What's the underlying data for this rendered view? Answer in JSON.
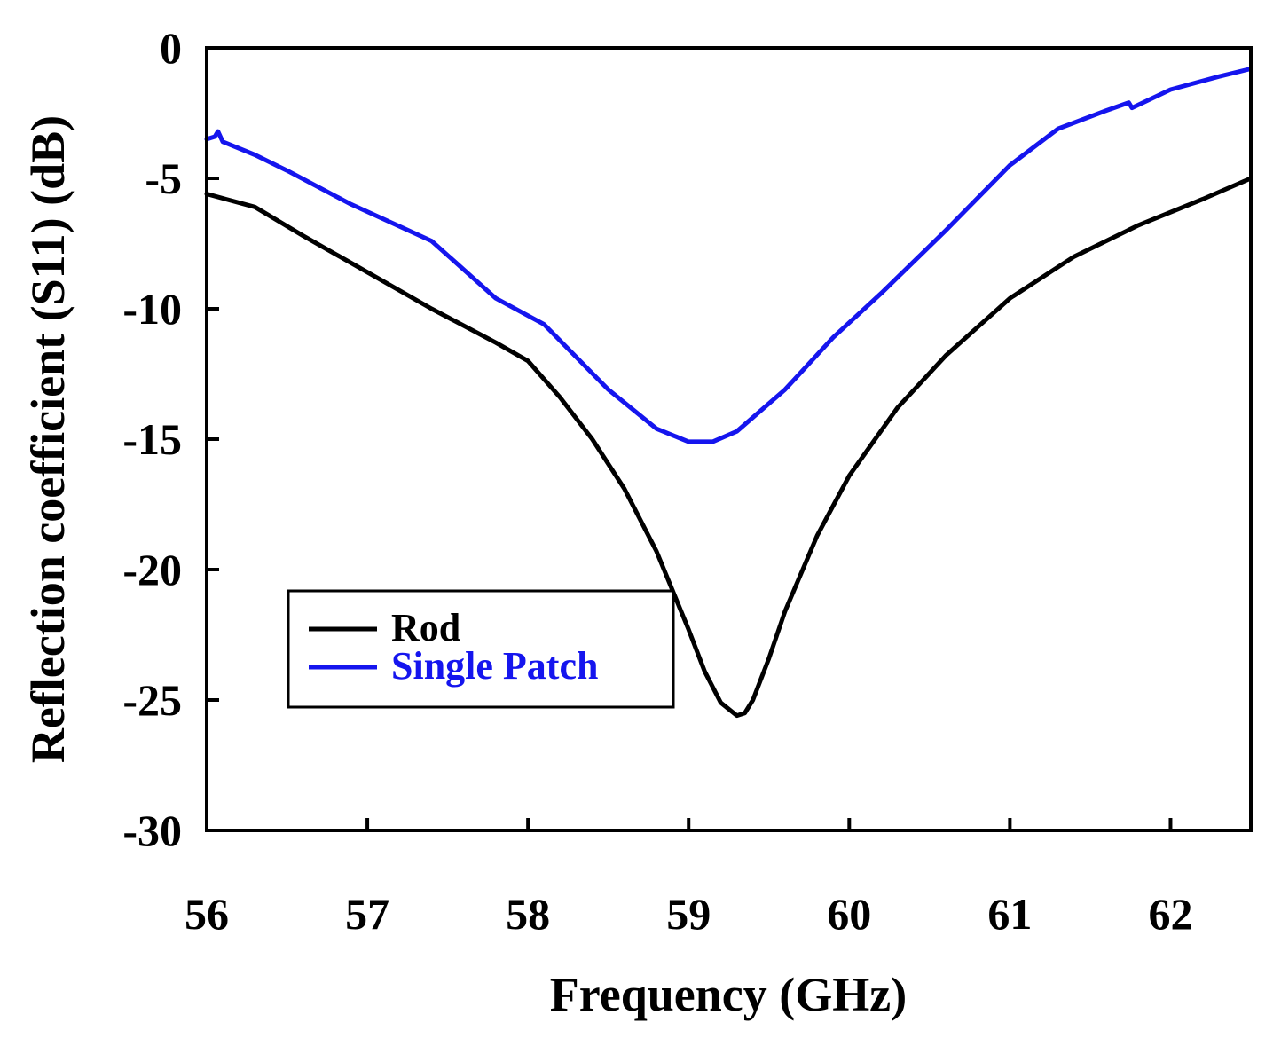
{
  "chart_data": {
    "type": "line",
    "title": "",
    "xlabel": "Frequency (GHz)",
    "ylabel": "Reflection coefficient (S11) (dB)",
    "xlim": [
      56,
      62.5
    ],
    "ylim": [
      -30,
      0
    ],
    "xticks": [
      56,
      57,
      58,
      59,
      60,
      61,
      62
    ],
    "yticks": [
      0,
      -5,
      -10,
      -15,
      -20,
      -25,
      -30
    ],
    "xtick_labels": [
      "56",
      "57",
      "58",
      "59",
      "60",
      "61",
      "62"
    ],
    "ytick_labels": [
      "0",
      "-5",
      "-10",
      "-15",
      "-20",
      "-25",
      "-30"
    ],
    "grid": false,
    "legend_position": "lower-left",
    "series": [
      {
        "name": "Rod",
        "color": "#000000",
        "x": [
          56.0,
          56.3,
          56.6,
          57.0,
          57.4,
          57.8,
          58.0,
          58.2,
          58.4,
          58.6,
          58.8,
          59.0,
          59.1,
          59.2,
          59.3,
          59.35,
          59.4,
          59.5,
          59.6,
          59.8,
          60.0,
          60.3,
          60.6,
          61.0,
          61.4,
          61.8,
          62.2,
          62.5
        ],
        "y": [
          -5.6,
          -6.1,
          -7.2,
          -8.6,
          -10.0,
          -11.3,
          -12.0,
          -13.4,
          -15.0,
          -16.9,
          -19.3,
          -22.3,
          -23.9,
          -25.1,
          -25.6,
          -25.5,
          -25.0,
          -23.4,
          -21.6,
          -18.7,
          -16.4,
          -13.8,
          -11.8,
          -9.6,
          -8.0,
          -6.8,
          -5.8,
          -5.0
        ]
      },
      {
        "name": "Single Patch",
        "color": "#1515ee",
        "x": [
          56.0,
          56.05,
          56.07,
          56.1,
          56.3,
          56.5,
          56.9,
          57.4,
          57.8,
          58.1,
          58.5,
          58.8,
          59.0,
          59.15,
          59.3,
          59.6,
          59.9,
          60.2,
          60.6,
          61.0,
          61.3,
          61.6,
          61.74,
          61.76,
          62.0,
          62.3,
          62.5
        ],
        "y": [
          -3.5,
          -3.4,
          -3.2,
          -3.6,
          -4.1,
          -4.7,
          -6.0,
          -7.4,
          -9.6,
          -10.6,
          -13.1,
          -14.6,
          -15.1,
          -15.1,
          -14.7,
          -13.1,
          -11.1,
          -9.4,
          -7.0,
          -4.5,
          -3.1,
          -2.4,
          -2.1,
          -2.3,
          -1.6,
          -1.1,
          -0.8
        ]
      }
    ]
  }
}
